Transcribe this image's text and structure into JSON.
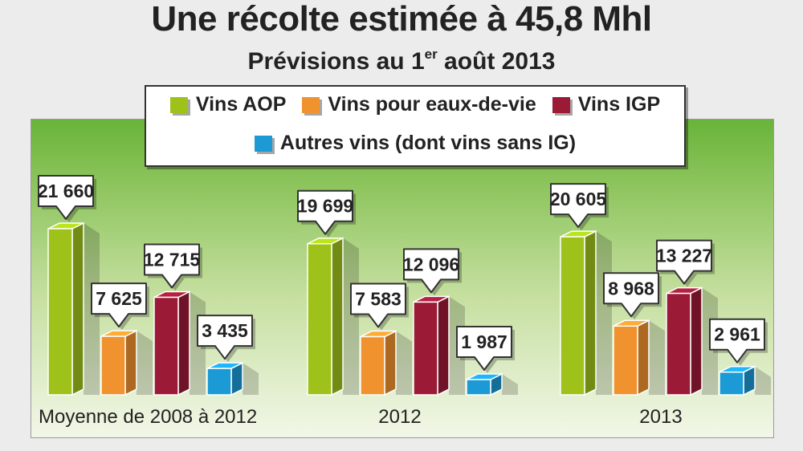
{
  "title": "Une récolte estimée à 45,8 Mhl",
  "subtitle": {
    "text": "Prévisions au 1",
    "sup": "er",
    "rest": " août 2013"
  },
  "legend": [
    {
      "label": "Vins AOP",
      "color": "#9ec21a"
    },
    {
      "label": "Vins pour eaux-de-vie",
      "color": "#f0922e"
    },
    {
      "label": "Vins IGP",
      "color": "#9b1b37"
    },
    {
      "label": "Autres vins (dont vins sans IG)",
      "color": "#1b9ad6"
    }
  ],
  "chart_data": {
    "type": "bar",
    "title": "Une récolte estimée à 45,8 Mhl",
    "subtitle": "Prévisions au 1er août 2013",
    "categories": [
      "Moyenne de 2008 à 2012",
      "2012",
      "2013"
    ],
    "series": [
      {
        "name": "Vins AOP",
        "values": [
          21660,
          19699,
          20605
        ],
        "labels": [
          "21 660",
          "19 699",
          "20 605"
        ],
        "color": "#9ec21a"
      },
      {
        "name": "Vins pour eaux-de-vie",
        "values": [
          7625,
          7583,
          8968
        ],
        "labels": [
          "7 625",
          "7 583",
          "8 968"
        ],
        "color": "#f0922e"
      },
      {
        "name": "Vins IGP",
        "values": [
          12715,
          12096,
          13227
        ],
        "labels": [
          "12 715",
          "12 096",
          "13 227"
        ],
        "color": "#9b1b37"
      },
      {
        "name": "Autres vins (dont vins sans IG)",
        "values": [
          3435,
          1987,
          2961
        ],
        "labels": [
          "3 435",
          "1 987",
          "2 961"
        ],
        "color": "#1b9ad6"
      }
    ],
    "grid": false,
    "legend_position": "top-center"
  }
}
